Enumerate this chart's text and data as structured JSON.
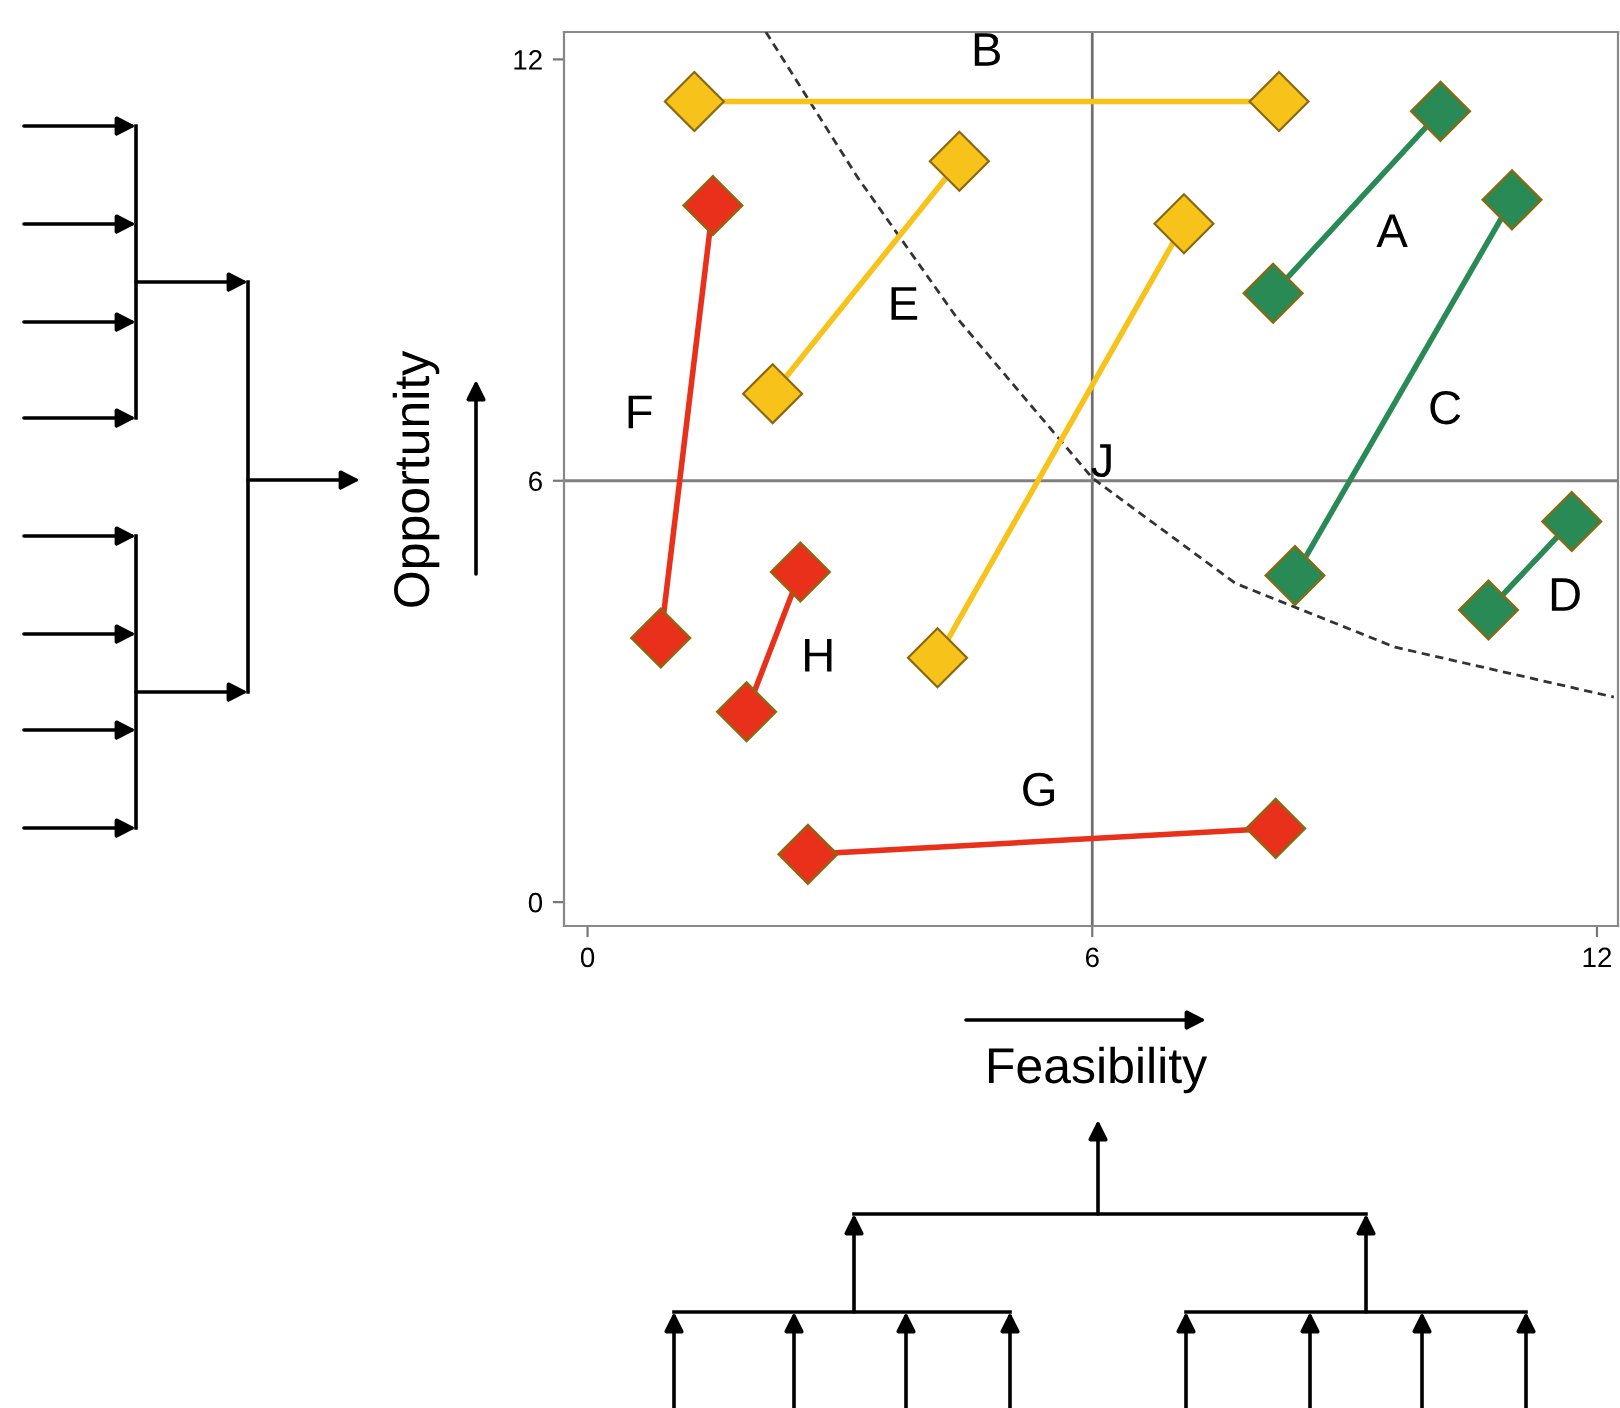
{
  "chart_data": {
    "type": "line",
    "xlabel": "Feasibility",
    "ylabel": "Opportunity",
    "xlim": [
      -0.28,
      12.25
    ],
    "ylim": [
      -0.34,
      12.39
    ],
    "xticks": [
      0,
      6,
      12
    ],
    "yticks": [
      0,
      6,
      12
    ],
    "grid": false,
    "legend": false,
    "ref_lines": [
      {
        "axis": "x",
        "value": 6,
        "color": "#707070"
      },
      {
        "axis": "y",
        "value": 6,
        "color": "#808080"
      }
    ],
    "series": [
      {
        "color": "#333333",
        "line_style": "dashed",
        "marker": "none",
        "x": [
          2.12,
          3.21,
          4.39,
          6.0,
          7.7,
          9.6,
          12.2
        ],
        "values": [
          12.39,
          10.32,
          8.32,
          6.04,
          4.54,
          3.63,
          2.92
        ]
      },
      {
        "name": "B",
        "color": "#f7c21a",
        "marker": "diamond",
        "x": [
          1.27,
          8.22
        ],
        "values": [
          11.4,
          11.4
        ]
      },
      {
        "name": "E",
        "color": "#f7c21a",
        "marker": "diamond",
        "x": [
          4.42,
          2.2
        ],
        "values": [
          10.55,
          7.24
        ]
      },
      {
        "name": "J",
        "color": "#f7c21a",
        "marker": "diamond",
        "x": [
          7.09,
          4.16
        ],
        "values": [
          9.66,
          3.48
        ]
      },
      {
        "name": "F",
        "color": "#e8301a",
        "marker": "diamond",
        "x": [
          0.87,
          1.49
        ],
        "values": [
          3.76,
          9.92
        ]
      },
      {
        "name": "H",
        "color": "#e8301a",
        "marker": "diamond",
        "x": [
          2.53,
          1.89
        ],
        "values": [
          4.7,
          2.71
        ]
      },
      {
        "name": "G",
        "color": "#e8301a",
        "marker": "diamond",
        "x": [
          2.62,
          8.18
        ],
        "values": [
          0.68,
          1.05
        ]
      },
      {
        "name": "A",
        "color": "#2a8a55",
        "marker": "diamond",
        "x": [
          10.14,
          8.15
        ],
        "values": [
          11.26,
          8.67
        ]
      },
      {
        "name": "C",
        "color": "#2a8a55",
        "marker": "diamond",
        "x": [
          10.99,
          8.41
        ],
        "values": [
          10.0,
          4.65
        ]
      },
      {
        "name": "D",
        "color": "#2a8a55",
        "marker": "diamond",
        "x": [
          11.7,
          10.71
        ],
        "values": [
          5.42,
          4.16
        ]
      }
    ]
  }
}
